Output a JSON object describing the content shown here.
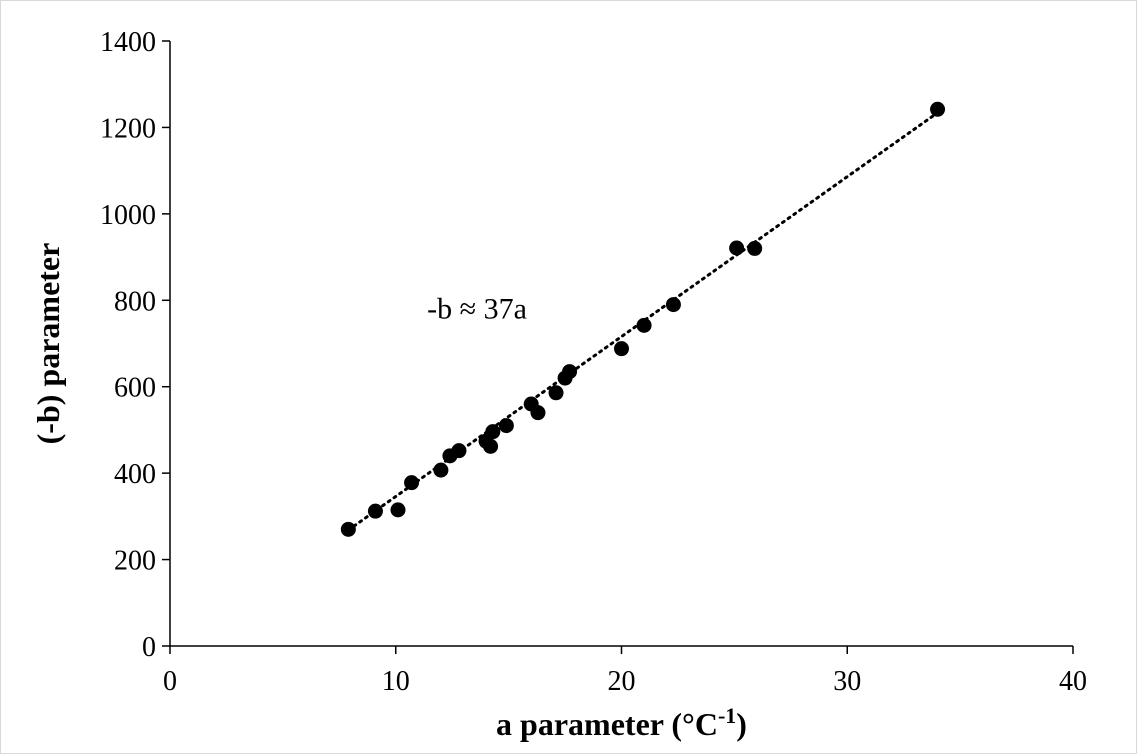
{
  "chart_data": {
    "type": "scatter",
    "title": "",
    "xlabel": "a parameter (°C",
    "xlabel_sup": "-1",
    "xlabel_tail": ")",
    "ylabel": "(-b) parameter",
    "xlim": [
      0,
      40
    ],
    "ylim": [
      0,
      1400
    ],
    "x_ticks": [
      0,
      10,
      20,
      30,
      40
    ],
    "y_ticks": [
      0,
      200,
      400,
      600,
      800,
      1000,
      1200,
      1400
    ],
    "grid": false,
    "legend": "none",
    "marker_color": "#000000",
    "points": [
      {
        "x": 7.9,
        "y": 270
      },
      {
        "x": 9.1,
        "y": 312
      },
      {
        "x": 10.1,
        "y": 315
      },
      {
        "x": 10.7,
        "y": 378
      },
      {
        "x": 12.0,
        "y": 407
      },
      {
        "x": 12.4,
        "y": 440
      },
      {
        "x": 12.8,
        "y": 452
      },
      {
        "x": 14.0,
        "y": 474
      },
      {
        "x": 14.2,
        "y": 462
      },
      {
        "x": 14.3,
        "y": 496
      },
      {
        "x": 14.9,
        "y": 510
      },
      {
        "x": 16.0,
        "y": 560
      },
      {
        "x": 16.3,
        "y": 540
      },
      {
        "x": 17.1,
        "y": 586
      },
      {
        "x": 17.5,
        "y": 620
      },
      {
        "x": 17.7,
        "y": 635
      },
      {
        "x": 20.0,
        "y": 688
      },
      {
        "x": 21.0,
        "y": 742
      },
      {
        "x": 22.3,
        "y": 790
      },
      {
        "x": 25.1,
        "y": 921
      },
      {
        "x": 25.9,
        "y": 920
      },
      {
        "x": 34.0,
        "y": 1242
      }
    ],
    "trendline": {
      "style": "dotted",
      "x_range": [
        7.9,
        34.0
      ],
      "slope": 37,
      "intercept": -24
    },
    "annotation": "-b ≈ 37a",
    "annotation_anchor": {
      "x": 13.6,
      "y": 790
    }
  }
}
